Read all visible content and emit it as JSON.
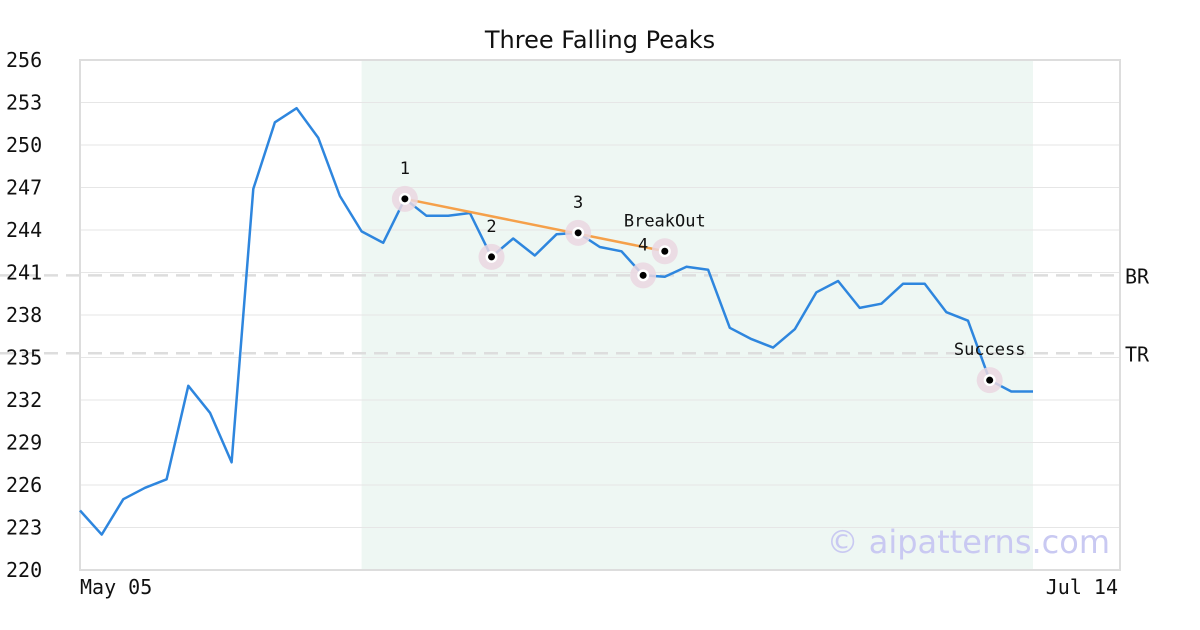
{
  "chart_data": {
    "type": "line",
    "title": "Three Falling Peaks",
    "xlabel": "",
    "ylabel": "",
    "ylim": [
      220,
      256
    ],
    "yticks": [
      220,
      223,
      226,
      229,
      232,
      235,
      238,
      241,
      244,
      247,
      250,
      253,
      256
    ],
    "x_labels": [
      "May 05",
      "Jul 14"
    ],
    "grid": true,
    "series": [
      {
        "color": "#2e86de",
        "values": [
          224.2,
          222.5,
          225.0,
          225.8,
          226.4,
          233.0,
          231.1,
          227.6,
          246.9,
          251.6,
          252.6,
          250.5,
          246.4,
          243.9,
          243.1,
          246.2,
          245.0,
          245.0,
          245.2,
          242.1,
          243.4,
          242.2,
          243.7,
          243.8,
          242.8,
          242.5,
          240.8,
          240.7,
          241.4,
          241.2,
          237.1,
          236.3,
          235.7,
          237.0,
          239.6,
          240.4,
          238.5,
          238.8,
          240.2,
          240.2,
          238.2,
          237.6,
          233.4,
          232.6,
          232.6
        ]
      }
    ],
    "shaded_range": [
      13,
      44
    ],
    "trendline": {
      "color": "#f5a04a",
      "from": [
        15,
        246.2
      ],
      "to": [
        27,
        242.5
      ]
    },
    "levels": [
      {
        "label": "BR",
        "value": 240.8
      },
      {
        "label": "TR",
        "value": 235.3
      }
    ],
    "markers": [
      {
        "label": "1",
        "x": 15,
        "y": 246.2,
        "label_pos": "above"
      },
      {
        "label": "2",
        "x": 19,
        "y": 242.1,
        "label_pos": "above"
      },
      {
        "label": "3",
        "x": 23,
        "y": 243.8,
        "label_pos": "above"
      },
      {
        "label": "4",
        "x": 26,
        "y": 240.8,
        "label_pos": "above"
      },
      {
        "label": "BreakOut",
        "x": 27,
        "y": 242.5,
        "label_pos": "above"
      },
      {
        "label": "Success",
        "x": 42,
        "y": 233.4,
        "label_pos": "above"
      }
    ],
    "watermark": "© aipatterns.com",
    "colors": {
      "line": "#2e86de",
      "trendline": "#f5a04a",
      "shade": "#eef7f3",
      "marker_halo": "#ead7e0",
      "level_line": "#dddddd",
      "grid": "#e6e6e6",
      "frame": "#dddddd"
    }
  }
}
